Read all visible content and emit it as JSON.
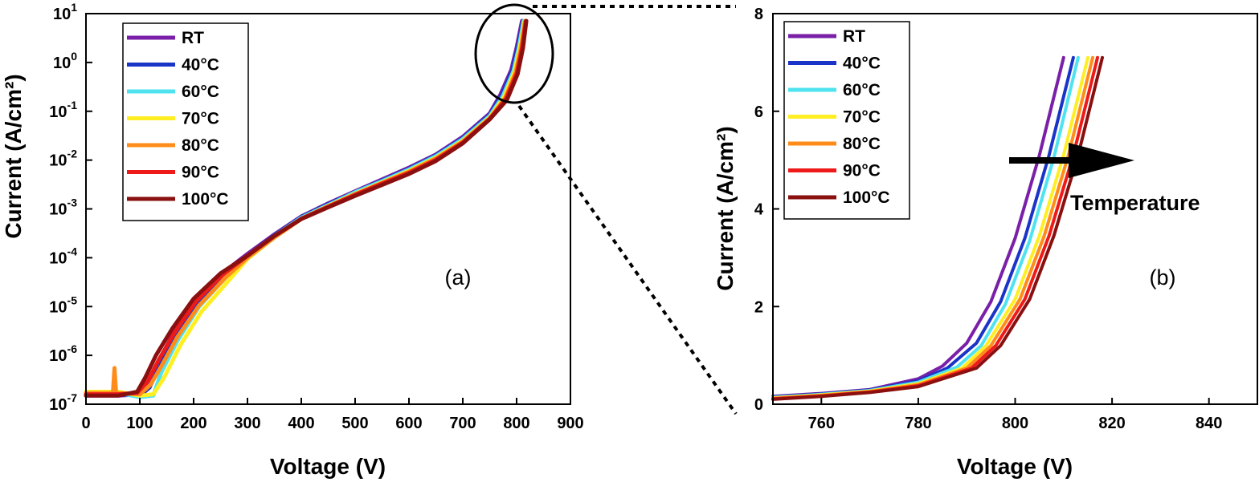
{
  "colors": {
    "RT": "#7a1fa8",
    "40C": "#1a34c8",
    "60C": "#4fe3f0",
    "70C": "#ffee22",
    "80C": "#ff8c1a",
    "90C": "#ee1a1a",
    "100C": "#8a1010"
  },
  "chart_data": [
    {
      "type": "line",
      "panel_label": "(a)",
      "xlabel": "Voltage (V)",
      "ylabel": "Current (A/cm²)",
      "xlim": [
        0,
        900
      ],
      "ylim": [
        1e-07,
        10
      ],
      "yscale": "log",
      "x_ticks": [
        "0",
        "100",
        "200",
        "300",
        "400",
        "500",
        "600",
        "700",
        "800",
        "900"
      ],
      "y_ticks": [
        {
          "base": "10",
          "exp": "1"
        },
        {
          "base": "10",
          "exp": "0"
        },
        {
          "base": "10",
          "exp": "-1"
        },
        {
          "base": "10",
          "exp": "-2"
        },
        {
          "base": "10",
          "exp": "-3"
        },
        {
          "base": "10",
          "exp": "-4"
        },
        {
          "base": "10",
          "exp": "-5"
        },
        {
          "base": "10",
          "exp": "-6"
        },
        {
          "base": "10",
          "exp": "-7"
        }
      ],
      "legend_position": "top-left",
      "legend": [
        "RT",
        "40°C",
        "60°C",
        "70°C",
        "80°C",
        "90°C",
        "100°C"
      ],
      "series": [
        {
          "name": "RT",
          "x": [
            0,
            60,
            100,
            115,
            130,
            160,
            200,
            250,
            300,
            350,
            400,
            450,
            500,
            550,
            600,
            650,
            700,
            750,
            770,
            790,
            800,
            810
          ],
          "y": [
            1.5e-07,
            1.5e-07,
            1.6e-07,
            2.5e-07,
            6e-07,
            2.5e-06,
            1.2e-05,
            4.5e-05,
            0.00012,
            0.0003,
            0.0007,
            0.0013,
            0.0023,
            0.004,
            0.007,
            0.013,
            0.03,
            0.09,
            0.22,
            0.7,
            2.0,
            7.1
          ]
        },
        {
          "name": "40°C",
          "x": [
            0,
            60,
            100,
            118,
            135,
            165,
            205,
            255,
            300,
            350,
            400,
            450,
            500,
            550,
            600,
            650,
            700,
            750,
            772,
            792,
            802,
            812
          ],
          "y": [
            1.6e-07,
            1.6e-07,
            1.5e-07,
            2.2e-07,
            5.5e-07,
            2.2e-06,
            1.1e-05,
            4.2e-05,
            0.00011,
            0.00029,
            0.00068,
            0.00125,
            0.0022,
            0.0038,
            0.0066,
            0.0125,
            0.028,
            0.085,
            0.21,
            0.68,
            2.0,
            7.1
          ]
        },
        {
          "name": "60°C",
          "x": [
            0,
            60,
            100,
            125,
            140,
            170,
            210,
            260,
            300,
            350,
            400,
            450,
            500,
            550,
            600,
            650,
            700,
            750,
            774,
            794,
            804,
            813
          ],
          "y": [
            1.7e-07,
            1.7e-07,
            1.4e-07,
            1.5e-07,
            4.5e-07,
            2e-06,
            1e-05,
            4e-05,
            0.000105,
            0.00028,
            0.00066,
            0.0012,
            0.0022,
            0.0037,
            0.0064,
            0.012,
            0.027,
            0.08,
            0.2,
            0.66,
            2.0,
            7.1
          ]
        },
        {
          "name": "70°C",
          "x": [
            0,
            60,
            100,
            125,
            145,
            175,
            215,
            265,
            300,
            350,
            400,
            450,
            500,
            550,
            600,
            650,
            700,
            750,
            776,
            796,
            806,
            815
          ],
          "y": [
            1.8e-07,
            1.8e-07,
            1.5e-07,
            1.6e-07,
            3.5e-07,
            1.6e-06,
            8e-06,
            3.4e-05,
            9.5e-05,
            0.00026,
            0.00063,
            0.00115,
            0.00205,
            0.0035,
            0.006,
            0.0112,
            0.025,
            0.075,
            0.19,
            0.64,
            2.0,
            7.1
          ]
        },
        {
          "name": "80°C",
          "x": [
            0,
            50,
            53,
            56,
            100,
            120,
            140,
            170,
            210,
            260,
            300,
            350,
            400,
            450,
            500,
            550,
            600,
            650,
            700,
            750,
            778,
            798,
            808,
            816
          ],
          "y": [
            1.7e-07,
            1.7e-07,
            5.5e-07,
            1.7e-07,
            1.6e-07,
            2.5e-07,
            6e-07,
            2.4e-06,
            1.05e-05,
            4e-05,
            0.0001,
            0.00026,
            0.00062,
            0.00112,
            0.002,
            0.0034,
            0.0058,
            0.0108,
            0.024,
            0.072,
            0.18,
            0.62,
            2.0,
            7.1
          ]
        },
        {
          "name": "90°C",
          "x": [
            0,
            60,
            95,
            115,
            135,
            165,
            205,
            255,
            300,
            350,
            400,
            450,
            500,
            550,
            600,
            650,
            700,
            750,
            780,
            800,
            810,
            817
          ],
          "y": [
            1.6e-07,
            1.6e-07,
            1.7e-07,
            3e-07,
            8e-07,
            3e-06,
            1.3e-05,
            4.6e-05,
            0.00011,
            0.00028,
            0.00063,
            0.00112,
            0.00195,
            0.0033,
            0.0055,
            0.0102,
            0.023,
            0.07,
            0.18,
            0.6,
            2.0,
            7.1
          ]
        },
        {
          "name": "100°C",
          "x": [
            0,
            60,
            95,
            110,
            130,
            160,
            200,
            250,
            300,
            350,
            400,
            450,
            500,
            550,
            600,
            650,
            700,
            750,
            782,
            802,
            812,
            818
          ],
          "y": [
            1.5e-07,
            1.5e-07,
            1.8e-07,
            3.5e-07,
            1e-06,
            3.5e-06,
            1.45e-05,
            4.8e-05,
            0.00011,
            0.00028,
            0.00062,
            0.00108,
            0.00185,
            0.0031,
            0.0052,
            0.0096,
            0.022,
            0.068,
            0.17,
            0.58,
            2.0,
            7.1
          ]
        }
      ]
    },
    {
      "type": "line",
      "panel_label": "(b)",
      "xlabel": "Voltage (V)",
      "ylabel": "Current (A/cm²)",
      "xlim": [
        750,
        850
      ],
      "ylim": [
        0,
        8
      ],
      "x_ticks": [
        "760",
        "780",
        "800",
        "820",
        "840"
      ],
      "y_ticks": [
        "0",
        "2",
        "4",
        "6",
        "8"
      ],
      "legend_position": "top-left",
      "legend": [
        "RT",
        "40°C",
        "60°C",
        "70°C",
        "80°C",
        "90°C",
        "100°C"
      ],
      "annotation": "Temperature",
      "series": [
        {
          "name": "RT",
          "x": [
            750,
            760,
            770,
            780,
            785,
            790,
            795,
            800,
            805,
            810
          ],
          "y": [
            0.16,
            0.22,
            0.3,
            0.52,
            0.78,
            1.25,
            2.1,
            3.4,
            5.1,
            7.1
          ]
        },
        {
          "name": "40°C",
          "x": [
            750,
            760,
            770,
            780,
            786,
            792,
            797,
            802,
            807,
            812
          ],
          "y": [
            0.15,
            0.21,
            0.29,
            0.48,
            0.74,
            1.25,
            2.1,
            3.4,
            5.1,
            7.1
          ]
        },
        {
          "name": "60°C",
          "x": [
            750,
            760,
            770,
            780,
            788,
            793,
            798,
            803,
            808,
            813
          ],
          "y": [
            0.14,
            0.2,
            0.28,
            0.45,
            0.76,
            1.2,
            2.05,
            3.35,
            5.05,
            7.1
          ]
        },
        {
          "name": "70°C",
          "x": [
            750,
            760,
            770,
            780,
            789,
            794,
            800,
            805,
            810,
            815
          ],
          "y": [
            0.13,
            0.19,
            0.27,
            0.42,
            0.74,
            1.2,
            2.15,
            3.45,
            5.1,
            7.1
          ]
        },
        {
          "name": "80°C",
          "x": [
            750,
            760,
            770,
            780,
            790,
            795,
            801,
            806,
            811,
            816
          ],
          "y": [
            0.12,
            0.18,
            0.26,
            0.4,
            0.74,
            1.2,
            2.15,
            3.45,
            5.1,
            7.1
          ]
        },
        {
          "name": "90°C",
          "x": [
            750,
            760,
            770,
            780,
            791,
            796,
            802,
            807,
            812,
            817
          ],
          "y": [
            0.11,
            0.17,
            0.25,
            0.38,
            0.74,
            1.2,
            2.15,
            3.45,
            5.1,
            7.1
          ]
        },
        {
          "name": "100°C",
          "x": [
            750,
            760,
            770,
            780,
            792,
            797,
            803,
            808,
            813,
            818
          ],
          "y": [
            0.1,
            0.16,
            0.24,
            0.36,
            0.74,
            1.2,
            2.15,
            3.45,
            5.1,
            7.1
          ]
        }
      ]
    }
  ]
}
